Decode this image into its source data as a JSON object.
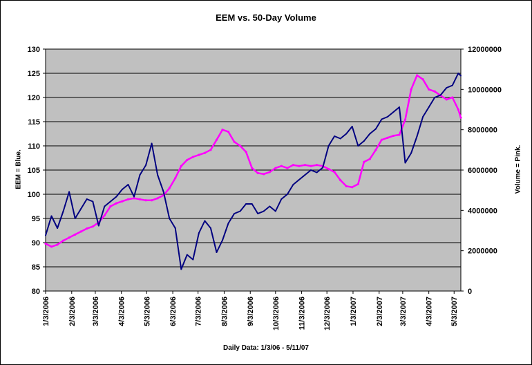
{
  "chart_data": {
    "type": "line",
    "title": "EEM vs. 50-Day Volume",
    "xlabel": "Daily Data: 1/3/06 - 5/11/07",
    "ylabel_left": "EEM = Blue.",
    "ylabel_right": "Volume = Pink.",
    "ylim_left": [
      80,
      130
    ],
    "ylim_right": [
      0,
      12000000
    ],
    "yticks_left": [
      "80",
      "85",
      "90",
      "95",
      "100",
      "105",
      "110",
      "115",
      "120",
      "125",
      "130"
    ],
    "yticks_right": [
      "0",
      "2000000",
      "4000000",
      "6000000",
      "8000000",
      "10000000",
      "12000000"
    ],
    "x_tick_labels": [
      "1/3/2006",
      "2/3/2006",
      "3/3/2006",
      "4/3/2006",
      "5/3/2006",
      "6/3/2006",
      "7/3/2006",
      "8/3/2006",
      "9/3/2006",
      "10/3/2006",
      "11/3/2006",
      "12/3/2006",
      "1/3/2007",
      "2/3/2007",
      "3/3/2007",
      "4/3/2007",
      "5/3/2007"
    ],
    "grid": true,
    "background_color": "#c0c0c0",
    "series": [
      {
        "axis": "left",
        "color": "#000080",
        "points": [
          [
            "1/3/2006",
            91.5
          ],
          [
            "1/10/2006",
            95.5
          ],
          [
            "1/17/2006",
            93
          ],
          [
            "1/24/2006",
            96.5
          ],
          [
            "1/31/2006",
            100.5
          ],
          [
            "2/7/2006",
            95
          ],
          [
            "2/14/2006",
            97
          ],
          [
            "2/21/2006",
            99
          ],
          [
            "2/28/2006",
            98.5
          ],
          [
            "3/7/2006",
            93.5
          ],
          [
            "3/14/2006",
            97.5
          ],
          [
            "3/21/2006",
            98.5
          ],
          [
            "3/28/2006",
            99.5
          ],
          [
            "4/4/2006",
            101
          ],
          [
            "4/11/2006",
            102
          ],
          [
            "4/18/2006",
            99.5
          ],
          [
            "4/25/2006",
            104
          ],
          [
            "5/2/2006",
            106
          ],
          [
            "5/9/2006",
            110.5
          ],
          [
            "5/16/2006",
            104
          ],
          [
            "5/23/2006",
            100.5
          ],
          [
            "5/30/2006",
            95
          ],
          [
            "6/6/2006",
            93
          ],
          [
            "6/13/2006",
            84.5
          ],
          [
            "6/20/2006",
            87.5
          ],
          [
            "6/27/2006",
            86.5
          ],
          [
            "7/4/2006",
            92
          ],
          [
            "7/11/2006",
            94.5
          ],
          [
            "7/18/2006",
            93
          ],
          [
            "7/25/2006",
            88
          ],
          [
            "8/1/2006",
            90.5
          ],
          [
            "8/8/2006",
            94
          ],
          [
            "8/15/2006",
            96
          ],
          [
            "8/22/2006",
            96.5
          ],
          [
            "8/29/2006",
            98
          ],
          [
            "9/5/2006",
            98
          ],
          [
            "9/12/2006",
            96
          ],
          [
            "9/19/2006",
            96.5
          ],
          [
            "9/26/2006",
            97.5
          ],
          [
            "10/3/2006",
            96.5
          ],
          [
            "10/10/2006",
            99
          ],
          [
            "10/17/2006",
            100
          ],
          [
            "10/24/2006",
            102
          ],
          [
            "10/31/2006",
            103
          ],
          [
            "11/7/2006",
            104
          ],
          [
            "11/14/2006",
            105
          ],
          [
            "11/21/2006",
            104.5
          ],
          [
            "11/28/2006",
            105.5
          ],
          [
            "12/5/2006",
            110
          ],
          [
            "12/12/2006",
            112
          ],
          [
            "12/19/2006",
            111.5
          ],
          [
            "12/26/2006",
            112.5
          ],
          [
            "1/2/2007",
            114
          ],
          [
            "1/9/2007",
            110
          ],
          [
            "1/16/2007",
            111
          ],
          [
            "1/23/2007",
            112.5
          ],
          [
            "1/30/2007",
            113.5
          ],
          [
            "2/6/2007",
            115.5
          ],
          [
            "2/13/2007",
            116
          ],
          [
            "2/20/2007",
            117
          ],
          [
            "2/27/2007",
            118
          ],
          [
            "3/6/2007",
            106.5
          ],
          [
            "3/13/2007",
            108.5
          ],
          [
            "3/20/2007",
            112
          ],
          [
            "3/27/2007",
            116
          ],
          [
            "4/3/2007",
            118
          ],
          [
            "4/10/2007",
            120
          ],
          [
            "4/17/2007",
            120.5
          ],
          [
            "4/24/2007",
            122
          ],
          [
            "5/1/2007",
            122.5
          ],
          [
            "5/8/2007",
            125
          ],
          [
            "5/11/2007",
            124.5
          ]
        ]
      },
      {
        "axis": "right",
        "color": "#ff00ff",
        "points": [
          [
            "1/3/2006",
            2350000
          ],
          [
            "1/10/2006",
            2200000
          ],
          [
            "1/17/2006",
            2300000
          ],
          [
            "1/24/2006",
            2500000
          ],
          [
            "1/31/2006",
            2650000
          ],
          [
            "2/7/2006",
            2800000
          ],
          [
            "2/14/2006",
            2950000
          ],
          [
            "2/21/2006",
            3100000
          ],
          [
            "2/28/2006",
            3200000
          ],
          [
            "3/7/2006",
            3400000
          ],
          [
            "3/14/2006",
            3750000
          ],
          [
            "3/21/2006",
            4200000
          ],
          [
            "3/28/2006",
            4350000
          ],
          [
            "4/4/2006",
            4450000
          ],
          [
            "4/11/2006",
            4550000
          ],
          [
            "4/18/2006",
            4600000
          ],
          [
            "4/25/2006",
            4550000
          ],
          [
            "5/2/2006",
            4500000
          ],
          [
            "5/9/2006",
            4500000
          ],
          [
            "5/16/2006",
            4600000
          ],
          [
            "5/23/2006",
            4750000
          ],
          [
            "5/30/2006",
            5100000
          ],
          [
            "6/6/2006",
            5600000
          ],
          [
            "6/13/2006",
            6200000
          ],
          [
            "6/20/2006",
            6500000
          ],
          [
            "6/27/2006",
            6650000
          ],
          [
            "7/4/2006",
            6750000
          ],
          [
            "7/11/2006",
            6850000
          ],
          [
            "7/18/2006",
            7000000
          ],
          [
            "7/25/2006",
            7500000
          ],
          [
            "8/1/2006",
            8000000
          ],
          [
            "8/8/2006",
            7900000
          ],
          [
            "8/15/2006",
            7400000
          ],
          [
            "8/22/2006",
            7200000
          ],
          [
            "8/29/2006",
            6900000
          ],
          [
            "9/5/2006",
            6100000
          ],
          [
            "9/12/2006",
            5850000
          ],
          [
            "9/19/2006",
            5800000
          ],
          [
            "9/26/2006",
            5900000
          ],
          [
            "10/3/2006",
            6100000
          ],
          [
            "10/10/2006",
            6200000
          ],
          [
            "10/17/2006",
            6100000
          ],
          [
            "10/24/2006",
            6250000
          ],
          [
            "10/31/2006",
            6200000
          ],
          [
            "11/7/2006",
            6250000
          ],
          [
            "11/14/2006",
            6200000
          ],
          [
            "11/21/2006",
            6250000
          ],
          [
            "11/28/2006",
            6200000
          ],
          [
            "12/5/2006",
            6050000
          ],
          [
            "12/12/2006",
            5900000
          ],
          [
            "12/19/2006",
            5500000
          ],
          [
            "12/26/2006",
            5200000
          ],
          [
            "1/2/2007",
            5150000
          ],
          [
            "1/9/2007",
            5300000
          ],
          [
            "1/16/2007",
            6400000
          ],
          [
            "1/23/2007",
            6550000
          ],
          [
            "1/30/2007",
            7000000
          ],
          [
            "2/6/2007",
            7500000
          ],
          [
            "2/13/2007",
            7600000
          ],
          [
            "2/20/2007",
            7700000
          ],
          [
            "2/27/2007",
            7750000
          ],
          [
            "3/6/2007",
            8500000
          ],
          [
            "3/13/2007",
            10000000
          ],
          [
            "3/20/2007",
            10700000
          ],
          [
            "3/27/2007",
            10500000
          ],
          [
            "4/3/2007",
            10000000
          ],
          [
            "4/10/2007",
            9900000
          ],
          [
            "4/17/2007",
            9700000
          ],
          [
            "4/24/2007",
            9500000
          ],
          [
            "5/1/2007",
            9600000
          ],
          [
            "5/8/2007",
            9000000
          ],
          [
            "5/11/2007",
            8600000
          ]
        ]
      }
    ]
  }
}
